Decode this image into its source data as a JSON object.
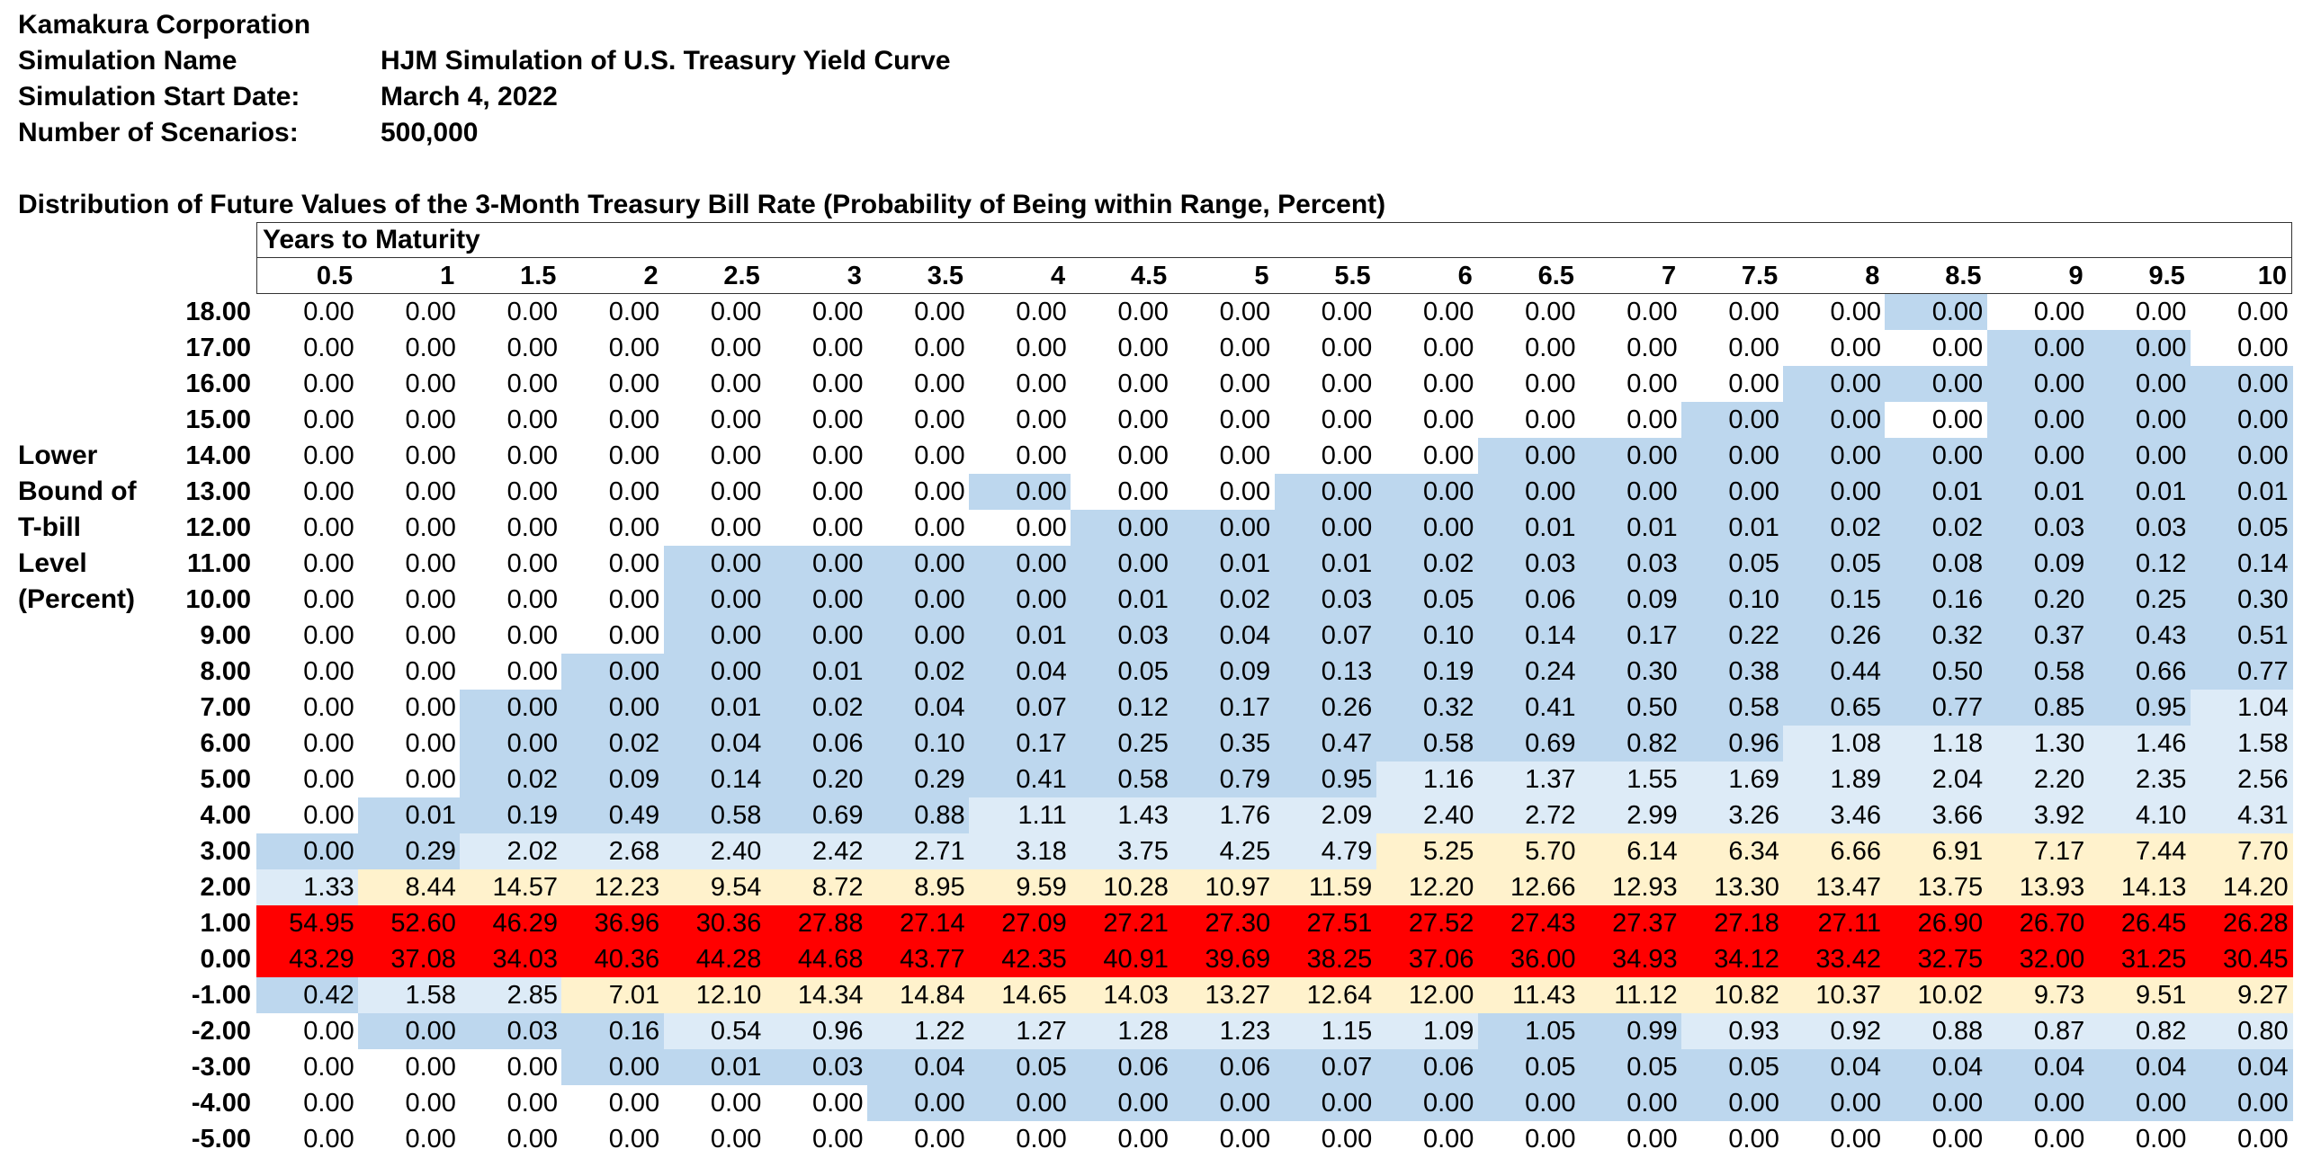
{
  "header": {
    "company": "Kamakura Corporation",
    "sim_name_label": "Simulation Name",
    "sim_name_value": "HJM Simulation of U.S. Treasury Yield Curve",
    "start_date_label": "Simulation Start Date:",
    "start_date_value": "March 4, 2022",
    "scenarios_label": "Number of Scenarios:",
    "scenarios_value": "500,000"
  },
  "table": {
    "title": "Distribution of Future Values of the 3-Month Treasury Bill Rate (Probability of Being within Range, Percent)",
    "column_header_title": "Years to Maturity",
    "row_axis_label": [
      "Lower",
      "Bound of",
      "T-bill",
      "Level",
      "(Percent)"
    ],
    "columns": [
      "0.5",
      "1",
      "1.5",
      "2",
      "2.5",
      "3",
      "3.5",
      "4",
      "4.5",
      "5",
      "5.5",
      "6",
      "6.5",
      "7",
      "7.5",
      "8",
      "8.5",
      "9",
      "9.5",
      "10"
    ],
    "rows": [
      {
        "label": "18.00",
        "values": [
          "0.00",
          "0.00",
          "0.00",
          "0.00",
          "0.00",
          "0.00",
          "0.00",
          "0.00",
          "0.00",
          "0.00",
          "0.00",
          "0.00",
          "0.00",
          "0.00",
          "0.00",
          "0.00",
          "0.00",
          "0.00",
          "0.00",
          "0.00"
        ]
      },
      {
        "label": "17.00",
        "values": [
          "0.00",
          "0.00",
          "0.00",
          "0.00",
          "0.00",
          "0.00",
          "0.00",
          "0.00",
          "0.00",
          "0.00",
          "0.00",
          "0.00",
          "0.00",
          "0.00",
          "0.00",
          "0.00",
          "0.00",
          "0.00",
          "0.00",
          "0.00"
        ]
      },
      {
        "label": "16.00",
        "values": [
          "0.00",
          "0.00",
          "0.00",
          "0.00",
          "0.00",
          "0.00",
          "0.00",
          "0.00",
          "0.00",
          "0.00",
          "0.00",
          "0.00",
          "0.00",
          "0.00",
          "0.00",
          "0.00",
          "0.00",
          "0.00",
          "0.00",
          "0.00"
        ]
      },
      {
        "label": "15.00",
        "values": [
          "0.00",
          "0.00",
          "0.00",
          "0.00",
          "0.00",
          "0.00",
          "0.00",
          "0.00",
          "0.00",
          "0.00",
          "0.00",
          "0.00",
          "0.00",
          "0.00",
          "0.00",
          "0.00",
          "0.00",
          "0.00",
          "0.00",
          "0.00"
        ]
      },
      {
        "label": "14.00",
        "values": [
          "0.00",
          "0.00",
          "0.00",
          "0.00",
          "0.00",
          "0.00",
          "0.00",
          "0.00",
          "0.00",
          "0.00",
          "0.00",
          "0.00",
          "0.00",
          "0.00",
          "0.00",
          "0.00",
          "0.00",
          "0.00",
          "0.00",
          "0.00"
        ]
      },
      {
        "label": "13.00",
        "values": [
          "0.00",
          "0.00",
          "0.00",
          "0.00",
          "0.00",
          "0.00",
          "0.00",
          "0.00",
          "0.00",
          "0.00",
          "0.00",
          "0.00",
          "0.00",
          "0.00",
          "0.00",
          "0.00",
          "0.01",
          "0.01",
          "0.01",
          "0.01"
        ]
      },
      {
        "label": "12.00",
        "values": [
          "0.00",
          "0.00",
          "0.00",
          "0.00",
          "0.00",
          "0.00",
          "0.00",
          "0.00",
          "0.00",
          "0.00",
          "0.00",
          "0.00",
          "0.01",
          "0.01",
          "0.01",
          "0.02",
          "0.02",
          "0.03",
          "0.03",
          "0.05"
        ]
      },
      {
        "label": "11.00",
        "values": [
          "0.00",
          "0.00",
          "0.00",
          "0.00",
          "0.00",
          "0.00",
          "0.00",
          "0.00",
          "0.00",
          "0.01",
          "0.01",
          "0.02",
          "0.03",
          "0.03",
          "0.05",
          "0.05",
          "0.08",
          "0.09",
          "0.12",
          "0.14"
        ]
      },
      {
        "label": "10.00",
        "values": [
          "0.00",
          "0.00",
          "0.00",
          "0.00",
          "0.00",
          "0.00",
          "0.00",
          "0.00",
          "0.01",
          "0.02",
          "0.03",
          "0.05",
          "0.06",
          "0.09",
          "0.10",
          "0.15",
          "0.16",
          "0.20",
          "0.25",
          "0.30"
        ]
      },
      {
        "label": "9.00",
        "values": [
          "0.00",
          "0.00",
          "0.00",
          "0.00",
          "0.00",
          "0.00",
          "0.00",
          "0.01",
          "0.03",
          "0.04",
          "0.07",
          "0.10",
          "0.14",
          "0.17",
          "0.22",
          "0.26",
          "0.32",
          "0.37",
          "0.43",
          "0.51"
        ]
      },
      {
        "label": "8.00",
        "values": [
          "0.00",
          "0.00",
          "0.00",
          "0.00",
          "0.00",
          "0.01",
          "0.02",
          "0.04",
          "0.05",
          "0.09",
          "0.13",
          "0.19",
          "0.24",
          "0.30",
          "0.38",
          "0.44",
          "0.50",
          "0.58",
          "0.66",
          "0.77"
        ]
      },
      {
        "label": "7.00",
        "values": [
          "0.00",
          "0.00",
          "0.00",
          "0.00",
          "0.01",
          "0.02",
          "0.04",
          "0.07",
          "0.12",
          "0.17",
          "0.26",
          "0.32",
          "0.41",
          "0.50",
          "0.58",
          "0.65",
          "0.77",
          "0.85",
          "0.95",
          "1.04"
        ]
      },
      {
        "label": "6.00",
        "values": [
          "0.00",
          "0.00",
          "0.00",
          "0.02",
          "0.04",
          "0.06",
          "0.10",
          "0.17",
          "0.25",
          "0.35",
          "0.47",
          "0.58",
          "0.69",
          "0.82",
          "0.96",
          "1.08",
          "1.18",
          "1.30",
          "1.46",
          "1.58"
        ]
      },
      {
        "label": "5.00",
        "values": [
          "0.00",
          "0.00",
          "0.02",
          "0.09",
          "0.14",
          "0.20",
          "0.29",
          "0.41",
          "0.58",
          "0.79",
          "0.95",
          "1.16",
          "1.37",
          "1.55",
          "1.69",
          "1.89",
          "2.04",
          "2.20",
          "2.35",
          "2.56"
        ]
      },
      {
        "label": "4.00",
        "values": [
          "0.00",
          "0.01",
          "0.19",
          "0.49",
          "0.58",
          "0.69",
          "0.88",
          "1.11",
          "1.43",
          "1.76",
          "2.09",
          "2.40",
          "2.72",
          "2.99",
          "3.26",
          "3.46",
          "3.66",
          "3.92",
          "4.10",
          "4.31"
        ]
      },
      {
        "label": "3.00",
        "values": [
          "0.00",
          "0.29",
          "2.02",
          "2.68",
          "2.40",
          "2.42",
          "2.71",
          "3.18",
          "3.75",
          "4.25",
          "4.79",
          "5.25",
          "5.70",
          "6.14",
          "6.34",
          "6.66",
          "6.91",
          "7.17",
          "7.44",
          "7.70"
        ]
      },
      {
        "label": "2.00",
        "values": [
          "1.33",
          "8.44",
          "14.57",
          "12.23",
          "9.54",
          "8.72",
          "8.95",
          "9.59",
          "10.28",
          "10.97",
          "11.59",
          "12.20",
          "12.66",
          "12.93",
          "13.30",
          "13.47",
          "13.75",
          "13.93",
          "14.13",
          "14.20"
        ]
      },
      {
        "label": "1.00",
        "values": [
          "54.95",
          "52.60",
          "46.29",
          "36.96",
          "30.36",
          "27.88",
          "27.14",
          "27.09",
          "27.21",
          "27.30",
          "27.51",
          "27.52",
          "27.43",
          "27.37",
          "27.18",
          "27.11",
          "26.90",
          "26.70",
          "26.45",
          "26.28"
        ]
      },
      {
        "label": "0.00",
        "values": [
          "43.29",
          "37.08",
          "34.03",
          "40.36",
          "44.28",
          "44.68",
          "43.77",
          "42.35",
          "40.91",
          "39.69",
          "38.25",
          "37.06",
          "36.00",
          "34.93",
          "34.12",
          "33.42",
          "32.75",
          "32.00",
          "31.25",
          "30.45"
        ]
      },
      {
        "label": "-1.00",
        "values": [
          "0.42",
          "1.58",
          "2.85",
          "7.01",
          "12.10",
          "14.34",
          "14.84",
          "14.65",
          "14.03",
          "13.27",
          "12.64",
          "12.00",
          "11.43",
          "11.12",
          "10.82",
          "10.37",
          "10.02",
          "9.73",
          "9.51",
          "9.27"
        ]
      },
      {
        "label": "-2.00",
        "values": [
          "0.00",
          "0.00",
          "0.03",
          "0.16",
          "0.54",
          "0.96",
          "1.22",
          "1.27",
          "1.28",
          "1.23",
          "1.15",
          "1.09",
          "1.05",
          "0.99",
          "0.93",
          "0.92",
          "0.88",
          "0.87",
          "0.82",
          "0.80"
        ]
      },
      {
        "label": "-3.00",
        "values": [
          "0.00",
          "0.00",
          "0.00",
          "0.00",
          "0.01",
          "0.03",
          "0.04",
          "0.05",
          "0.06",
          "0.06",
          "0.07",
          "0.06",
          "0.05",
          "0.05",
          "0.05",
          "0.04",
          "0.04",
          "0.04",
          "0.04",
          "0.04"
        ]
      },
      {
        "label": "-4.00",
        "values": [
          "0.00",
          "0.00",
          "0.00",
          "0.00",
          "0.00",
          "0.00",
          "0.00",
          "0.00",
          "0.00",
          "0.00",
          "0.00",
          "0.00",
          "0.00",
          "0.00",
          "0.00",
          "0.00",
          "0.00",
          "0.00",
          "0.00",
          "0.00"
        ]
      },
      {
        "label": "-5.00",
        "values": [
          "0.00",
          "0.00",
          "0.00",
          "0.00",
          "0.00",
          "0.00",
          "0.00",
          "0.00",
          "0.00",
          "0.00",
          "0.00",
          "0.00",
          "0.00",
          "0.00",
          "0.00",
          "0.00",
          "0.00",
          "0.00",
          "0.00",
          "0.00"
        ]
      }
    ],
    "fills": [
      "WWWWWWWWWWWWWWWWBWWW",
      "WWWWWWWWWWWWWWWWWBBW",
      "WWWWWWWWWWWWWWWBBBBB",
      "WWWWWWWWWWWWWWBBWBBB",
      "WWWWWWWWWWWWBBBBBBBB",
      "WWWWWWWBWWBBBBBBBBBB",
      "WWWWWWWWBBBBBBBBBBBB",
      "WWWWBBBBBBBBBBBBBBBB",
      "WWWWBBBBBBBBBBBBBBBB",
      "WWWWBBBBBBBBBBBBBBBB",
      "WWWBBBBBBBBBBBBBBBBB",
      "WWBBBBBBBBBBBBBBBBBL",
      "WWBBBBBBBBBBBBBLLLLL",
      "WWBBBBBBBBBLLLLLLLLL",
      "WBBBBBBLLLLLLLLLLLLL",
      "BBLLLLLLLLLYYYYYYYYY",
      "LYYYYYYYYYYYYYYYYYYY",
      "RRRRRRRRRRRRRRRRRRRR",
      "RRRRRRRRRRRRRRRRRRRR",
      "BLLYYYYYYYYYYYYYYYYY",
      "WBBBLLLLLLLLBBLLLLLL",
      "WWWBBBBBBBBBBBBBBBBB",
      "WWWWWWBBBBBBBBBBBBBB",
      "WWWWWWWWWWWWWWWWWWWW"
    ],
    "fill_colors": {
      "W": "#ffffff",
      "B": "#bdd7ee",
      "L": "#ddebf7",
      "Y": "#fff2cc",
      "R": "#ff0000"
    }
  }
}
